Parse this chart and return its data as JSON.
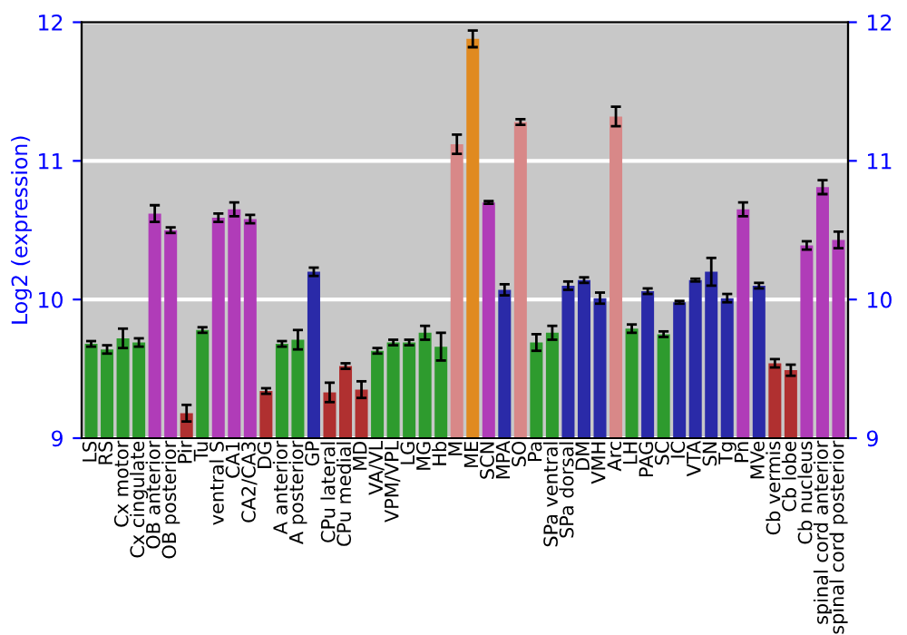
{
  "chart_data": {
    "type": "bar",
    "ylabel": "Log2 (expression)",
    "categories": [
      "LS",
      "RS",
      "Cx motor",
      "Cx cingulate",
      "OB anterior",
      "OB posterior",
      "Pir",
      "Tu",
      "ventral S",
      "CA1",
      "CA2/CA3",
      "DG",
      "A anterior",
      "A posterior",
      "GP",
      "CPu lateral",
      "CPu medial",
      "MD",
      "VA/VL",
      "VPM/VPL",
      "LG",
      "MG",
      "Hb",
      "M",
      "ME",
      "SCN",
      "MPA",
      "SO",
      "Pa",
      "SPa ventral",
      "SPa dorsal",
      "DM",
      "VMH",
      "Arc",
      "LH",
      "PAG",
      "SC",
      "IC",
      "VTA",
      "SN",
      "Tg",
      "Pn",
      "MVe",
      "Cb vermis",
      "Cb lobe",
      "Cb nucleus",
      "spinal cord anterior",
      "spinal cord posterior"
    ],
    "values": [
      9.68,
      9.64,
      9.72,
      9.69,
      10.62,
      10.5,
      9.18,
      9.78,
      10.59,
      10.65,
      10.58,
      9.34,
      9.68,
      9.71,
      10.2,
      9.33,
      9.52,
      9.35,
      9.63,
      9.69,
      9.69,
      9.76,
      9.66,
      11.12,
      11.88,
      10.7,
      10.07,
      11.28,
      9.69,
      9.76,
      10.1,
      10.14,
      10.01,
      11.32,
      9.79,
      10.06,
      9.75,
      9.98,
      10.14,
      10.2,
      10.01,
      10.65,
      10.1,
      9.54,
      9.49,
      10.39,
      10.81,
      10.43
    ],
    "errors": [
      0.02,
      0.03,
      0.07,
      0.03,
      0.06,
      0.02,
      0.06,
      0.02,
      0.03,
      0.05,
      0.03,
      0.02,
      0.02,
      0.07,
      0.03,
      0.07,
      0.02,
      0.06,
      0.02,
      0.02,
      0.02,
      0.05,
      0.1,
      0.07,
      0.06,
      0.01,
      0.04,
      0.02,
      0.06,
      0.05,
      0.03,
      0.02,
      0.04,
      0.07,
      0.03,
      0.02,
      0.02,
      0.01,
      0.01,
      0.1,
      0.03,
      0.05,
      0.02,
      0.03,
      0.04,
      0.03,
      0.05,
      0.06
    ],
    "colors": [
      "#2e9b2e",
      "#2e9b2e",
      "#2e9b2e",
      "#2e9b2e",
      "#b03cb8",
      "#b03cb8",
      "#b03030",
      "#2e9b2e",
      "#b03cb8",
      "#b03cb8",
      "#b03cb8",
      "#b03030",
      "#2e9b2e",
      "#2e9b2e",
      "#2a2aa8",
      "#b03030",
      "#b03030",
      "#b03030",
      "#2e9b2e",
      "#2e9b2e",
      "#2e9b2e",
      "#2e9b2e",
      "#2e9b2e",
      "#d88888",
      "#e08a20",
      "#b03cb8",
      "#2a2aa8",
      "#d88888",
      "#2e9b2e",
      "#2e9b2e",
      "#2a2aa8",
      "#2a2aa8",
      "#2a2aa8",
      "#d88888",
      "#2e9b2e",
      "#2a2aa8",
      "#2e9b2e",
      "#2a2aa8",
      "#2a2aa8",
      "#2a2aa8",
      "#2a2aa8",
      "#b03cb8",
      "#2a2aa8",
      "#b03030",
      "#b03030",
      "#b03cb8",
      "#b03cb8",
      "#b03cb8"
    ],
    "ylim": [
      9,
      12
    ],
    "yticks": [
      9,
      10,
      11,
      12
    ],
    "y2lim": [
      9,
      12
    ],
    "y2ticks": [
      9,
      10,
      11,
      12
    ],
    "grid": "y"
  }
}
